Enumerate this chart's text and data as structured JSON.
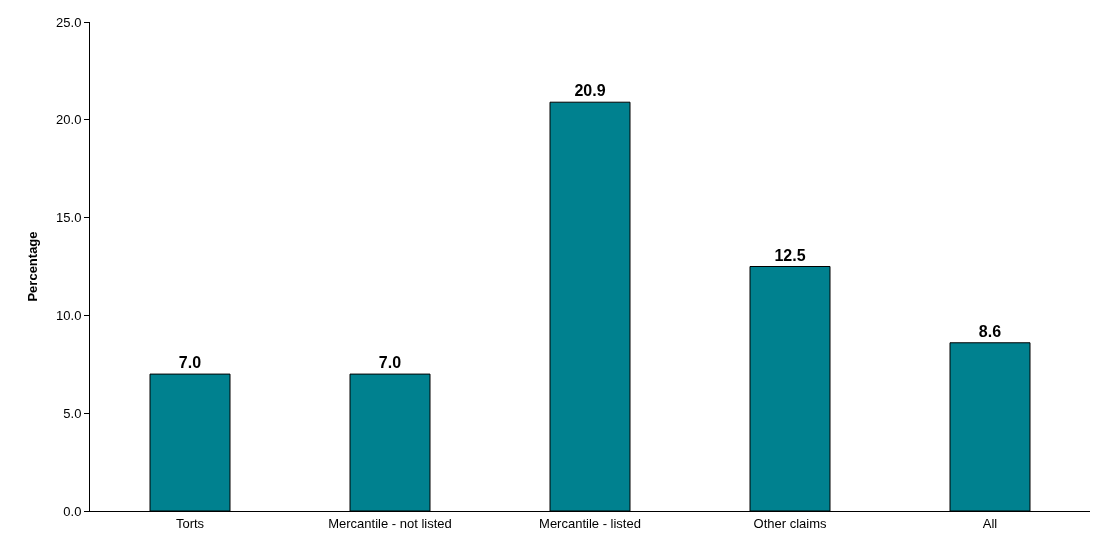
{
  "chart_data": {
    "type": "bar",
    "ylabel": "Percentage",
    "categories": [
      "Torts",
      "Mercantile - not listed",
      "Mercantile - listed",
      "Other claims",
      "All"
    ],
    "values": [
      7.0,
      7.0,
      20.9,
      12.5,
      8.6
    ],
    "color": "#00818f",
    "value_labels": [
      "7.0",
      "7.0",
      "20.9",
      "12.5",
      "8.6"
    ],
    "ylim": [
      0,
      25
    ],
    "yticks": [
      {
        "value": 0,
        "label": "0.0"
      },
      {
        "value": 5,
        "label": "5.0"
      },
      {
        "value": 10,
        "label": "10.0"
      },
      {
        "value": 15,
        "label": "15.0"
      },
      {
        "value": 20,
        "label": "20.0"
      },
      {
        "value": 25,
        "label": "25.0"
      }
    ],
    "grid": false
  }
}
